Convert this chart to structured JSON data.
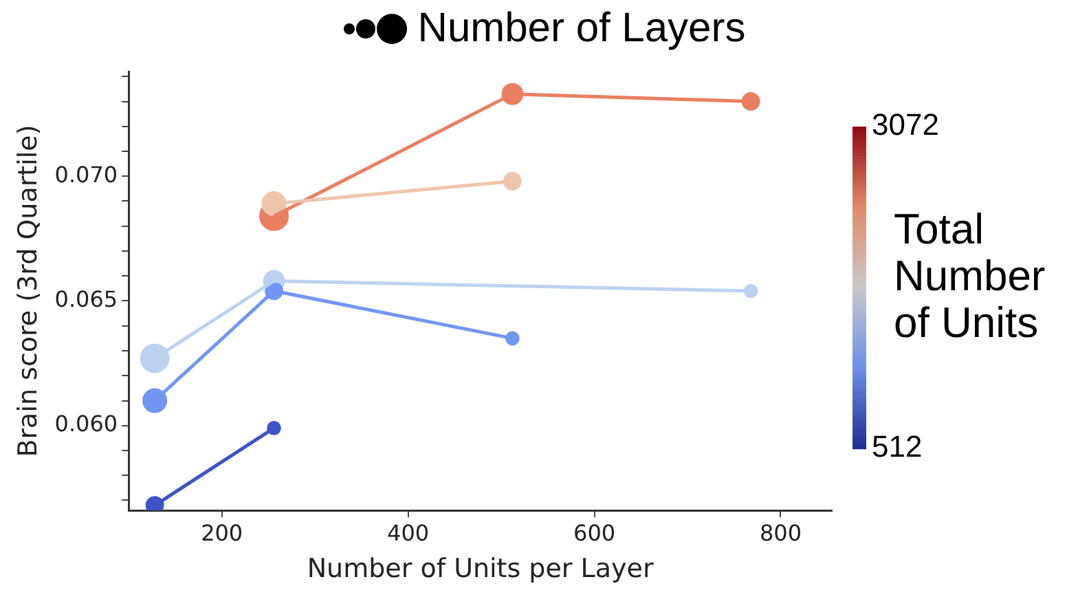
{
  "chart_data": {
    "type": "bubble",
    "legend_title": "Number of Layers",
    "xlabel": "Number of Units per Layer",
    "ylabel": "Brain score (3rd Quartile)",
    "clabel": "Total Number of Units",
    "xlim": [
      100,
      855
    ],
    "xticks": [
      200,
      400,
      600,
      800
    ],
    "ylim": [
      0.0566,
      0.0742
    ],
    "yticks": [
      {
        "value": 0.057,
        "label": null
      },
      {
        "value": 0.058,
        "label": null
      },
      {
        "value": 0.059,
        "label": null
      },
      {
        "value": 0.06,
        "label": "0.060"
      },
      {
        "value": 0.061,
        "label": null
      },
      {
        "value": 0.062,
        "label": null
      },
      {
        "value": 0.063,
        "label": null
      },
      {
        "value": 0.064,
        "label": null
      },
      {
        "value": 0.065,
        "label": "0.065"
      },
      {
        "value": 0.066,
        "label": null
      },
      {
        "value": 0.067,
        "label": null
      },
      {
        "value": 0.068,
        "label": null
      },
      {
        "value": 0.069,
        "label": null
      },
      {
        "value": 0.07,
        "label": "0.070"
      },
      {
        "value": 0.071,
        "label": null
      },
      {
        "value": 0.072,
        "label": null
      },
      {
        "value": 0.073,
        "label": null
      },
      {
        "value": 0.074,
        "label": null
      }
    ],
    "clim": [
      512,
      3072
    ],
    "cticks": [
      512,
      3072
    ],
    "grid": false,
    "legend": false,
    "marker": "circle",
    "line_style": "solid",
    "series": [
      {
        "type": "line",
        "marker": "none",
        "color": "#3f53c6",
        "x": [
          128,
          256
        ],
        "values": [
          0.0568,
          0.0599
        ]
      },
      {
        "type": "line",
        "marker": "none",
        "color": "#7396f2",
        "x": [
          128,
          256,
          512
        ],
        "values": [
          0.061,
          0.0654,
          0.0635
        ]
      },
      {
        "type": "line",
        "marker": "none",
        "color": "#bcd2f0",
        "x": [
          128,
          256,
          768
        ],
        "values": [
          0.0627,
          0.0658,
          0.0654
        ]
      },
      {
        "type": "line",
        "marker": "none",
        "color": "#eec6ad",
        "x": [
          256,
          512
        ],
        "values": [
          0.0689,
          0.0698
        ]
      },
      {
        "type": "line",
        "marker": "none",
        "color": "#ea7f62",
        "x": [
          256,
          512,
          768
        ],
        "values": [
          0.0684,
          0.0733,
          0.073
        ]
      },
      {
        "color": "#3f53c6",
        "x": [
          128,
          256
        ],
        "values": [
          0.0568,
          0.0599
        ],
        "sizes": [
          0.33,
          0.17
        ]
      },
      {
        "color": "#7396f2",
        "x": [
          128,
          256,
          512
        ],
        "values": [
          0.061,
          0.0654,
          0.0635
        ],
        "sizes": [
          0.67,
          0.33,
          0.17
        ]
      },
      {
        "color": "#bcd2f0",
        "x": [
          128,
          256,
          768
        ],
        "values": [
          0.0627,
          0.0658,
          0.0654
        ],
        "sizes": [
          1,
          0.5,
          0.17
        ]
      },
      {
        "color": "#eec6ad",
        "x": [
          256,
          512
        ],
        "values": [
          0.0689,
          0.0698
        ],
        "sizes": [
          0.67,
          0.33
        ]
      },
      {
        "color": "#ea7f62",
        "x": [
          256,
          512,
          768
        ],
        "values": [
          0.0684,
          0.0733,
          0.073
        ],
        "sizes": [
          1,
          0.5,
          0.33
        ]
      }
    ]
  }
}
